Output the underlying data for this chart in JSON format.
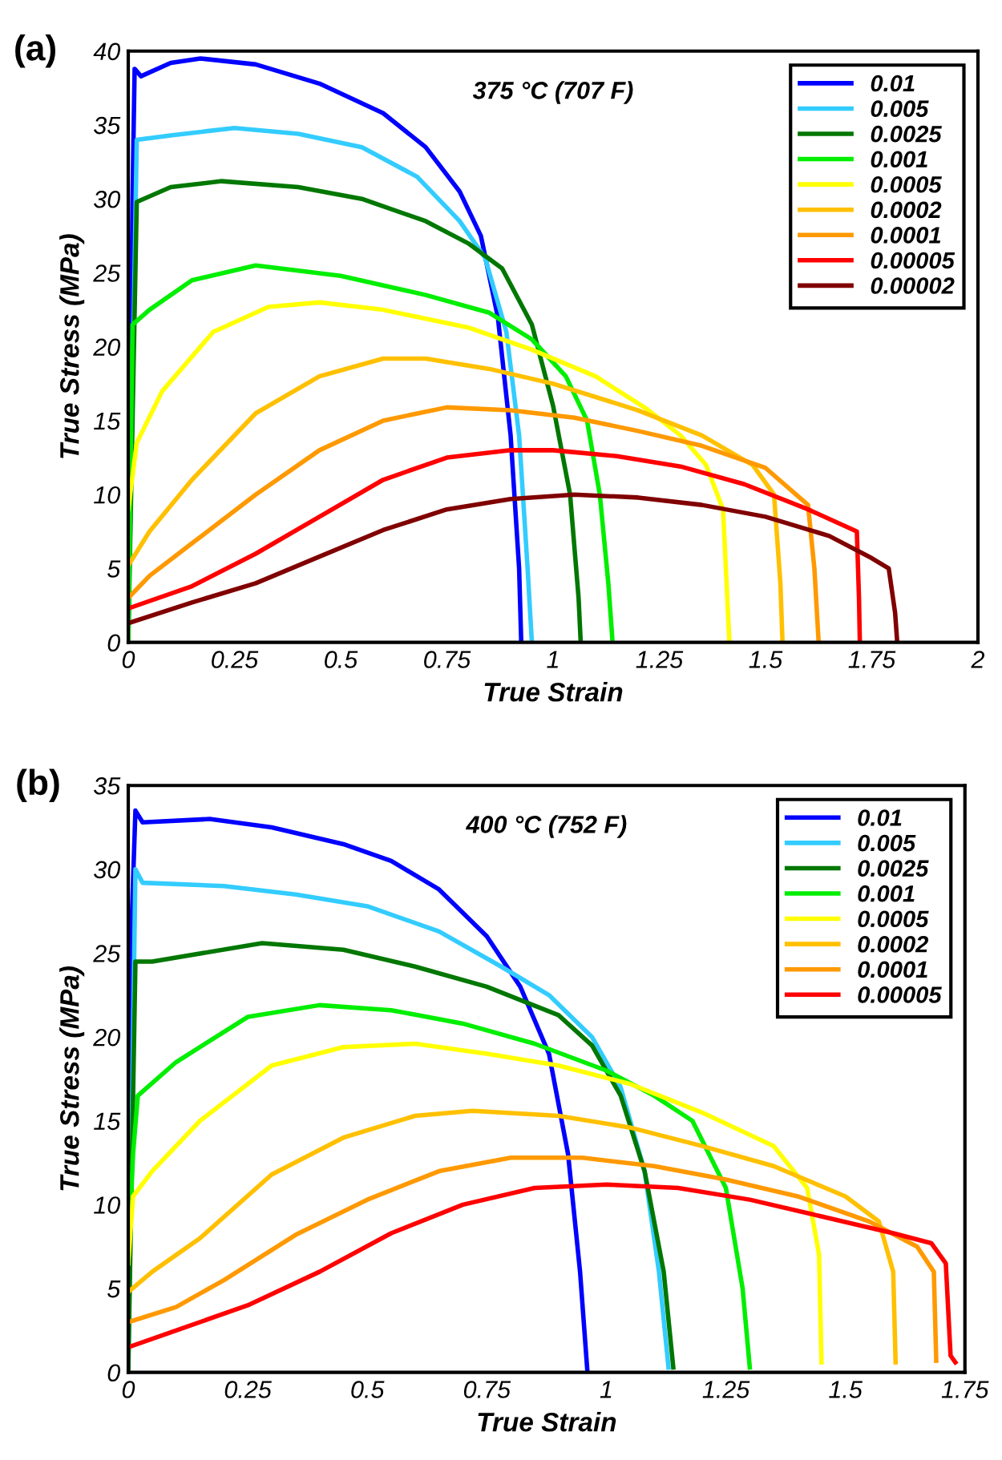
{
  "chart_data": [
    {
      "type": "line",
      "xlabel": "True Strain",
      "ylabel": "True Stress (MPa)",
      "annotations": [
        "(a)",
        "375 °C (707 F)"
      ],
      "xlim": [
        0,
        2
      ],
      "ylim": [
        0,
        40
      ],
      "xticks": [
        0,
        0.25,
        0.5,
        0.75,
        1,
        1.25,
        1.5,
        1.75,
        2
      ],
      "yticks": [
        0,
        5,
        10,
        15,
        20,
        25,
        30,
        35,
        40
      ],
      "grid": false,
      "legend": "top right",
      "marker": "none",
      "line_style": "solid",
      "series": [
        {
          "name": "0.01",
          "color": "#0000ff",
          "x": [
            0,
            0.01,
            0.015,
            0.03,
            0.1,
            0.17,
            0.3,
            0.45,
            0.6,
            0.7,
            0.78,
            0.83,
            0.87,
            0.9,
            0.92,
            0.925
          ],
          "values": [
            0,
            30,
            38.8,
            38.3,
            39.2,
            39.5,
            39.1,
            37.8,
            35.8,
            33.5,
            30.5,
            27.5,
            22,
            14,
            5,
            0
          ]
        },
        {
          "name": "0.005",
          "color": "#33ccff",
          "x": [
            0,
            0.02,
            0.1,
            0.25,
            0.4,
            0.55,
            0.68,
            0.78,
            0.84,
            0.89,
            0.92,
            0.94,
            0.95
          ],
          "values": [
            0,
            34,
            34.3,
            34.8,
            34.4,
            33.5,
            31.5,
            28.5,
            26,
            21,
            14,
            5,
            0
          ]
        },
        {
          "name": "0.0025",
          "color": "#007700",
          "x": [
            0,
            0.02,
            0.1,
            0.22,
            0.4,
            0.55,
            0.7,
            0.8,
            0.88,
            0.95,
            1.0,
            1.04,
            1.06,
            1.065
          ],
          "values": [
            0,
            29.8,
            30.8,
            31.2,
            30.8,
            30,
            28.5,
            27,
            25.3,
            21.5,
            16,
            10,
            3,
            0
          ]
        },
        {
          "name": "0.001",
          "color": "#00ee00",
          "x": [
            0,
            0.01,
            0.05,
            0.15,
            0.3,
            0.5,
            0.7,
            0.85,
            0.95,
            1.03,
            1.08,
            1.11,
            1.13,
            1.14
          ],
          "values": [
            0,
            21.5,
            22.5,
            24.5,
            25.5,
            24.8,
            23.5,
            22.3,
            20.5,
            18,
            15,
            10,
            4,
            0
          ]
        },
        {
          "name": "0.0005",
          "color": "#ffff00",
          "x": [
            0,
            0.02,
            0.08,
            0.2,
            0.33,
            0.45,
            0.6,
            0.8,
            0.95,
            1.1,
            1.22,
            1.3,
            1.36,
            1.4,
            1.41,
            1.415
          ],
          "values": [
            9,
            13.5,
            17,
            21,
            22.7,
            23,
            22.5,
            21.3,
            19.8,
            18,
            15.8,
            14,
            12,
            9,
            3,
            0
          ]
        },
        {
          "name": "0.0002",
          "color": "#ffc000",
          "x": [
            0,
            0.05,
            0.15,
            0.3,
            0.45,
            0.6,
            0.7,
            0.85,
            1.0,
            1.2,
            1.35,
            1.47,
            1.52,
            1.535,
            1.54
          ],
          "values": [
            5.2,
            7.5,
            11,
            15.5,
            18,
            19.2,
            19.2,
            18.5,
            17.5,
            15.7,
            14,
            12,
            10,
            4,
            0
          ]
        },
        {
          "name": "0.0001",
          "color": "#ff9900",
          "x": [
            0,
            0.05,
            0.15,
            0.3,
            0.45,
            0.6,
            0.75,
            0.9,
            1.05,
            1.2,
            1.35,
            1.5,
            1.6,
            1.615,
            1.625
          ],
          "values": [
            3,
            4.5,
            6.7,
            10,
            13,
            15,
            15.9,
            15.7,
            15.2,
            14.3,
            13.3,
            11.8,
            9.3,
            5,
            0
          ]
        },
        {
          "name": "0.00005",
          "color": "#ff0000",
          "x": [
            0,
            0.15,
            0.3,
            0.45,
            0.6,
            0.75,
            0.9,
            1.0,
            1.15,
            1.3,
            1.45,
            1.6,
            1.715,
            1.72,
            1.722
          ],
          "values": [
            2.3,
            3.8,
            6,
            8.5,
            11,
            12.5,
            13,
            13,
            12.6,
            11.9,
            10.7,
            9,
            7.5,
            3,
            0
          ]
        },
        {
          "name": "0.00002",
          "color": "#800000",
          "x": [
            0,
            0.15,
            0.3,
            0.45,
            0.6,
            0.75,
            0.9,
            1.05,
            1.2,
            1.35,
            1.5,
            1.65,
            1.75,
            1.79,
            1.805,
            1.81
          ],
          "values": [
            1.3,
            2.7,
            4,
            5.8,
            7.6,
            9,
            9.7,
            10,
            9.8,
            9.3,
            8.5,
            7.2,
            5.7,
            5,
            2,
            0
          ]
        }
      ]
    },
    {
      "type": "line",
      "xlabel": "True Strain",
      "ylabel": "True Stress (MPa)",
      "annotations": [
        "(b)",
        "400 °C (752 F)"
      ],
      "xlim": [
        0,
        1.75
      ],
      "ylim": [
        0,
        35
      ],
      "xticks": [
        0,
        0.25,
        0.5,
        0.75,
        1,
        1.25,
        1.5,
        1.75
      ],
      "yticks": [
        0,
        5,
        10,
        15,
        20,
        25,
        30,
        35
      ],
      "grid": false,
      "legend": "top right",
      "marker": "none",
      "line_style": "solid",
      "series": [
        {
          "name": "0.01",
          "color": "#0000ff",
          "x": [
            0,
            0.005,
            0.015,
            0.03,
            0.17,
            0.3,
            0.45,
            0.55,
            0.65,
            0.75,
            0.82,
            0.88,
            0.92,
            0.945,
            0.96
          ],
          "values": [
            0,
            25,
            33.5,
            32.8,
            33,
            32.5,
            31.5,
            30.5,
            28.8,
            26,
            23,
            19,
            13,
            6,
            0.2
          ]
        },
        {
          "name": "0.005",
          "color": "#33ccff",
          "x": [
            0,
            0.015,
            0.03,
            0.2,
            0.35,
            0.5,
            0.65,
            0.78,
            0.88,
            0.97,
            1.03,
            1.08,
            1.11,
            1.13
          ],
          "values": [
            0,
            30,
            29.2,
            29,
            28.5,
            27.8,
            26.3,
            24.2,
            22.5,
            20,
            17,
            12,
            6,
            0.3
          ]
        },
        {
          "name": "0.0025",
          "color": "#007700",
          "x": [
            0,
            0.015,
            0.05,
            0.28,
            0.45,
            0.6,
            0.75,
            0.9,
            0.97,
            1.03,
            1.08,
            1.12,
            1.14
          ],
          "values": [
            0,
            24.5,
            24.5,
            25.6,
            25.2,
            24.2,
            23,
            21.3,
            19.5,
            16.5,
            12,
            6,
            0.3
          ]
        },
        {
          "name": "0.001",
          "color": "#00ee00",
          "x": [
            0,
            0.01,
            0.02,
            0.1,
            0.25,
            0.4,
            0.55,
            0.7,
            0.85,
            1.0,
            1.1,
            1.18,
            1.25,
            1.285,
            1.3
          ],
          "values": [
            6.5,
            13,
            16.5,
            18.5,
            21.2,
            21.9,
            21.6,
            20.8,
            19.6,
            18,
            16.5,
            15,
            11,
            5,
            0.3
          ]
        },
        {
          "name": "0.0005",
          "color": "#ffff00",
          "x": [
            0,
            0.01,
            0.05,
            0.15,
            0.3,
            0.45,
            0.6,
            0.75,
            0.9,
            1.05,
            1.2,
            1.35,
            1.42,
            1.445,
            1.45
          ],
          "values": [
            6.5,
            10.5,
            12,
            15,
            18.3,
            19.4,
            19.6,
            19,
            18.3,
            17.2,
            15.5,
            13.5,
            11,
            7,
            0.6
          ]
        },
        {
          "name": "0.0002",
          "color": "#ffc000",
          "x": [
            0,
            0.05,
            0.15,
            0.3,
            0.45,
            0.6,
            0.72,
            0.9,
            1.05,
            1.2,
            1.35,
            1.5,
            1.57,
            1.6,
            1.605
          ],
          "values": [
            4.8,
            6,
            8,
            11.8,
            14,
            15.3,
            15.6,
            15.3,
            14.6,
            13.5,
            12.3,
            10.5,
            9,
            6,
            0.6
          ]
        },
        {
          "name": "0.0001",
          "color": "#ff9900",
          "x": [
            0,
            0.1,
            0.2,
            0.35,
            0.5,
            0.65,
            0.8,
            0.95,
            1.1,
            1.25,
            1.4,
            1.55,
            1.65,
            1.685,
            1.69
          ],
          "values": [
            3,
            3.9,
            5.5,
            8.2,
            10.3,
            12,
            12.8,
            12.8,
            12.3,
            11.5,
            10.5,
            9,
            7.5,
            6,
            0.7
          ]
        },
        {
          "name": "0.00005",
          "color": "#ff0000",
          "x": [
            0,
            0.1,
            0.25,
            0.4,
            0.55,
            0.7,
            0.85,
            1.0,
            1.15,
            1.3,
            1.45,
            1.6,
            1.68,
            1.71,
            1.72,
            1.73
          ],
          "values": [
            1.5,
            2.5,
            4,
            6,
            8.3,
            10,
            11,
            11.2,
            11,
            10.3,
            9.3,
            8.3,
            7.7,
            6.5,
            1,
            0.6
          ]
        }
      ]
    }
  ]
}
